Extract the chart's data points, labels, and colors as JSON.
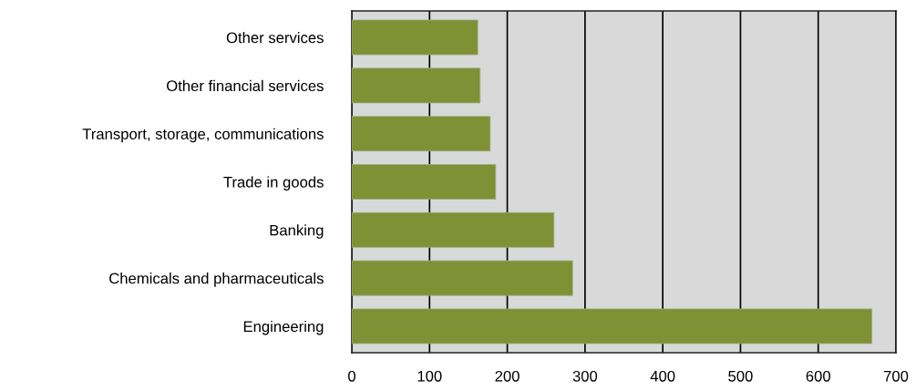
{
  "chart_data": {
    "type": "bar",
    "orientation": "horizontal",
    "categories": [
      "Other services",
      "Other financial services",
      "Transport, storage, communications",
      "Trade in goods",
      "Banking",
      "Chemicals and pharmaceuticals",
      "Engineering"
    ],
    "values": [
      162,
      165,
      178,
      185,
      260,
      284,
      669
    ],
    "color": "#7f9035",
    "xlim": [
      0,
      700
    ],
    "xticks": [
      0,
      100,
      200,
      300,
      400,
      500,
      600,
      700
    ],
    "grid": "x"
  }
}
